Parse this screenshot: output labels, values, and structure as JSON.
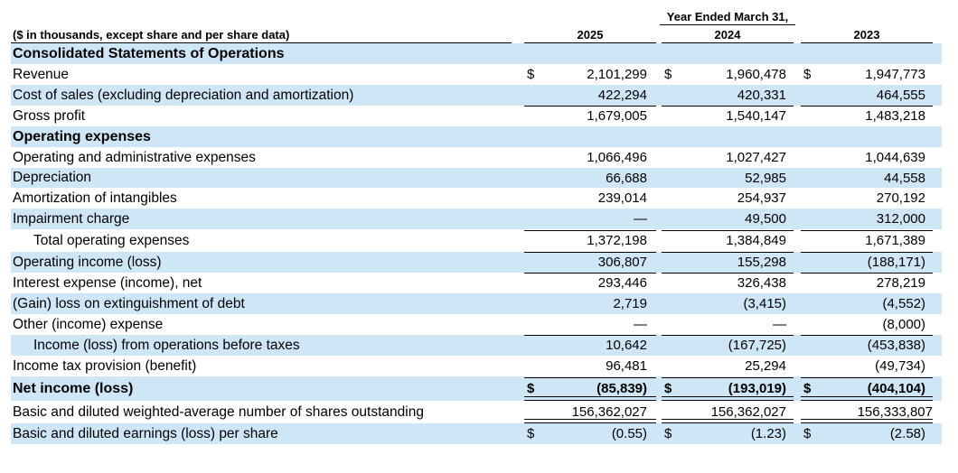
{
  "header": {
    "caption": "($ in thousands, except share and per share data)",
    "period": "Year Ended March 31,",
    "years": [
      "2025",
      "2024",
      "2023"
    ]
  },
  "section_title": "Consolidated Statements of Operations",
  "opex_title": "Operating expenses",
  "currency_symbol": "$",
  "rows": {
    "revenue": {
      "label": "Revenue",
      "values": [
        "2,101,299",
        "1,960,478",
        "1,947,773"
      ]
    },
    "cost_of_sales": {
      "label": "Cost of sales (excluding depreciation and amortization)",
      "values": [
        "422,294",
        "420,331",
        "464,555"
      ]
    },
    "gross_profit": {
      "label": "Gross profit",
      "values": [
        "1,679,005",
        "1,540,147",
        "1,483,218"
      ]
    },
    "opadmin": {
      "label": "Operating and administrative expenses",
      "values": [
        "1,066,496",
        "1,027,427",
        "1,044,639"
      ]
    },
    "depreciation": {
      "label": "Depreciation",
      "values": [
        "66,688",
        "52,985",
        "44,558"
      ]
    },
    "amortization": {
      "label": "Amortization of intangibles",
      "values": [
        "239,014",
        "254,937",
        "270,192"
      ]
    },
    "impairment": {
      "label": "Impairment charge",
      "values": [
        "—",
        "49,500",
        "312,000"
      ]
    },
    "total_opex": {
      "label": "Total operating expenses",
      "values": [
        "1,372,198",
        "1,384,849",
        "1,671,389"
      ]
    },
    "operating_income": {
      "label": "Operating income (loss)",
      "values": [
        "306,807",
        "155,298",
        "(188,171)"
      ]
    },
    "interest": {
      "label": "Interest expense (income), net",
      "values": [
        "293,446",
        "326,438",
        "278,219"
      ]
    },
    "extinguishment": {
      "label": "(Gain) loss on extinguishment of debt",
      "values": [
        "2,719",
        "(3,415)",
        "(4,552)"
      ]
    },
    "other": {
      "label": "Other (income) expense",
      "values": [
        "—",
        "—",
        "(8,000)"
      ]
    },
    "pretax": {
      "label": "Income (loss) from operations before taxes",
      "values": [
        "10,642",
        "(167,725)",
        "(453,838)"
      ]
    },
    "tax": {
      "label": "Income tax provision (benefit)",
      "values": [
        "96,481",
        "25,294",
        "(49,734)"
      ]
    },
    "net_income": {
      "label": "Net income (loss)",
      "values": [
        "(85,839)",
        "(193,019)",
        "(404,104)"
      ]
    },
    "shares": {
      "label": "Basic and diluted weighted-average number of shares outstanding",
      "values": [
        "156,362,027",
        "156,362,027",
        "156,333,807"
      ]
    },
    "eps": {
      "label": "Basic and diluted earnings (loss) per share",
      "values": [
        "(0.55)",
        "(1.23)",
        "(2.58)"
      ]
    }
  }
}
